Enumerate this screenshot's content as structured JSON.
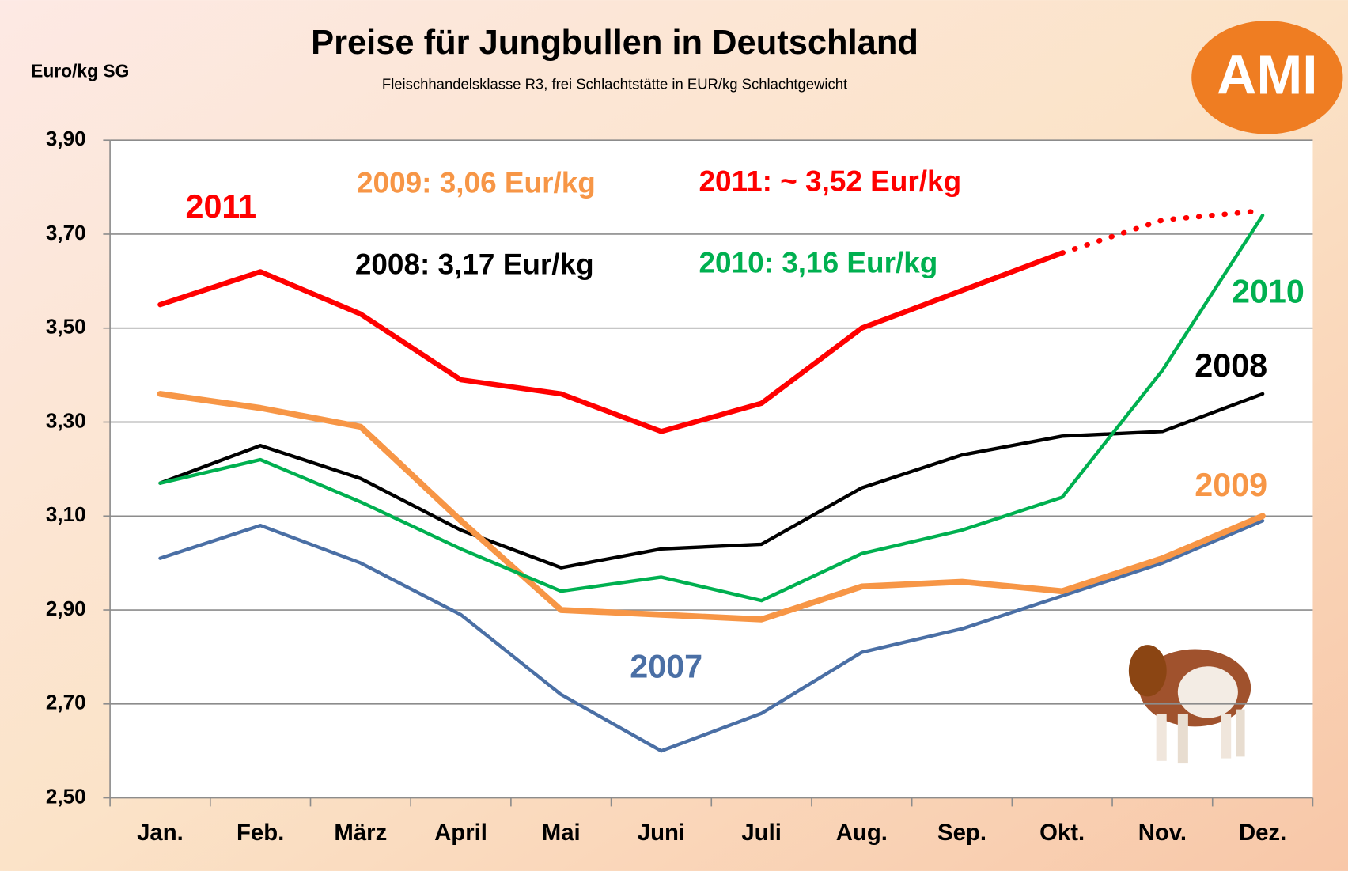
{
  "chart_data": {
    "type": "line",
    "title": "Preise für Jungbullen in Deutschland",
    "subtitle": "Fleischhandelsklasse R3, frei Schlachtstätte in EUR/kg Schlachtgewicht",
    "y_label": "Euro/kg SG",
    "logo": "AMI",
    "categories": [
      "Jan.",
      "Feb.",
      "März",
      "April",
      "Mai",
      "Juni",
      "Juli",
      "Aug.",
      "Sep.",
      "Okt.",
      "Nov.",
      "Dez."
    ],
    "ylim": [
      2.5,
      3.9
    ],
    "yticks": [
      {
        "value": 2.5,
        "label": "2,50"
      },
      {
        "value": 2.7,
        "label": "2,70"
      },
      {
        "value": 2.9,
        "label": "2,90"
      },
      {
        "value": 3.1,
        "label": "3,10"
      },
      {
        "value": 3.3,
        "label": "3,30"
      },
      {
        "value": 3.5,
        "label": "3,50"
      },
      {
        "value": 3.7,
        "label": "3,70"
      },
      {
        "value": 3.9,
        "label": "3,90"
      }
    ],
    "grid": true,
    "series": [
      {
        "name": "2007",
        "color": "#4a6fa5",
        "values": [
          3.01,
          3.08,
          3.0,
          2.89,
          2.72,
          2.6,
          2.68,
          2.81,
          2.86,
          2.93,
          3.0,
          3.09
        ]
      },
      {
        "name": "2008",
        "color": "#000000",
        "values": [
          3.17,
          3.25,
          3.18,
          3.07,
          2.99,
          3.03,
          3.04,
          3.16,
          3.23,
          3.27,
          3.28,
          3.36
        ]
      },
      {
        "name": "2009",
        "color": "#f79646",
        "values": [
          3.36,
          3.33,
          3.29,
          3.09,
          2.9,
          2.89,
          2.88,
          2.95,
          2.96,
          2.94,
          3.01,
          3.1
        ]
      },
      {
        "name": "2010",
        "color": "#00b050",
        "values": [
          3.17,
          3.22,
          3.13,
          3.03,
          2.94,
          2.97,
          2.92,
          3.02,
          3.07,
          3.14,
          3.41,
          3.74
        ]
      },
      {
        "name": "2011",
        "color": "#ff0000",
        "values": [
          3.55,
          3.62,
          3.53,
          3.39,
          3.36,
          3.28,
          3.34,
          3.5,
          3.58,
          3.66,
          null,
          null
        ]
      },
      {
        "color": "#ff0000",
        "dotted": true,
        "values": [
          null,
          null,
          null,
          null,
          null,
          null,
          null,
          null,
          null,
          3.66,
          3.73,
          3.75
        ]
      }
    ],
    "annotations": [
      {
        "text": "2009: 3,06 Eur/kg",
        "color": "#f79646"
      },
      {
        "text": "2011: ~ 3,52 Eur/kg",
        "color": "#ff0000"
      },
      {
        "text": "2008: 3,17 Eur/kg",
        "color": "#000000"
      },
      {
        "text": "2010: 3,16 Eur/kg",
        "color": "#00b050"
      }
    ]
  }
}
